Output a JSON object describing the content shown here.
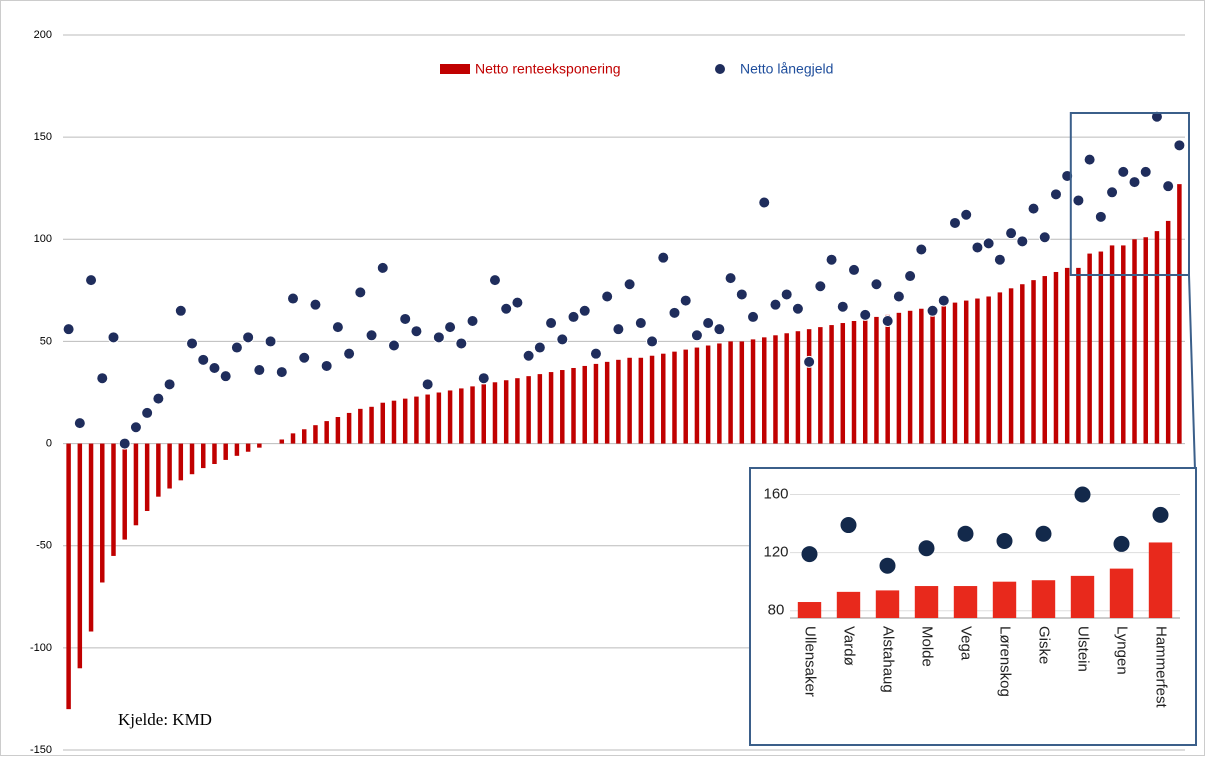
{
  "chart_data": [
    {
      "type": "bar-scatter",
      "source": "Kjelde: KMD",
      "ylim": [
        -150,
        200
      ],
      "yticks": [
        -150,
        -100,
        -50,
        0,
        50,
        100,
        150,
        200
      ],
      "grid": true,
      "legend": "top",
      "series": [
        {
          "name": "Netto renteeksponering",
          "color": "#c00000",
          "kind": "bar",
          "values": [
            -130,
            -110,
            -92,
            -68,
            -55,
            -47,
            -40,
            -33,
            -26,
            -22,
            -18,
            -15,
            -12,
            -10,
            -8,
            -6,
            -4,
            -2,
            0,
            2,
            5,
            7,
            9,
            11,
            13,
            15,
            17,
            18,
            20,
            21,
            22,
            23,
            24,
            25,
            26,
            27,
            28,
            29,
            30,
            31,
            32,
            33,
            34,
            35,
            36,
            37,
            38,
            39,
            40,
            41,
            42,
            42,
            43,
            44,
            45,
            46,
            47,
            48,
            49,
            50,
            50,
            51,
            52,
            53,
            54,
            55,
            56,
            57,
            58,
            59,
            60,
            61,
            62,
            63,
            64,
            65,
            66,
            67,
            68,
            69,
            70,
            71,
            72,
            74,
            76,
            78,
            80,
            82,
            84,
            86,
            86,
            93,
            94,
            97,
            97,
            100,
            101,
            104,
            109,
            127
          ]
        },
        {
          "name": "Netto lånegjeld",
          "color": "#1f2d5c",
          "kind": "dot",
          "values": [
            56,
            10,
            80,
            32,
            52,
            0,
            8,
            15,
            22,
            29,
            65,
            49,
            41,
            37,
            33,
            47,
            52,
            36,
            50,
            35,
            71,
            42,
            68,
            38,
            57,
            44,
            74,
            53,
            86,
            48,
            61,
            55,
            29,
            52,
            57,
            49,
            60,
            32,
            80,
            66,
            69,
            43,
            47,
            59,
            51,
            62,
            65,
            44,
            72,
            56,
            78,
            59,
            50,
            91,
            64,
            70,
            53,
            59,
            56,
            81,
            73,
            62,
            118,
            68,
            73,
            66,
            40,
            77,
            90,
            67,
            85,
            63,
            78,
            60,
            72,
            82,
            95,
            65,
            70,
            108,
            112,
            96,
            98,
            90,
            103,
            99,
            115,
            101,
            122,
            131,
            119,
            139,
            111,
            123,
            133,
            128,
            133,
            160,
            126,
            146
          ]
        }
      ]
    },
    {
      "type": "bar-scatter",
      "categories": [
        "Ullensaker",
        "Vardø",
        "Alstahaug",
        "Molde",
        "Vega",
        "Lørenskog",
        "Giske",
        "Ulstein",
        "Lyngen",
        "Hammerfest"
      ],
      "ylim": [
        75,
        170
      ],
      "yticks": [
        80,
        120,
        160
      ],
      "series": [
        {
          "color": "#e8291c",
          "kind": "bar",
          "values": [
            86,
            93,
            94,
            97,
            97,
            100,
            101,
            104,
            109,
            127
          ]
        },
        {
          "color": "#13294b",
          "kind": "dot",
          "values": [
            119,
            139,
            111,
            123,
            133,
            128,
            133,
            160,
            126,
            146
          ]
        }
      ]
    }
  ]
}
